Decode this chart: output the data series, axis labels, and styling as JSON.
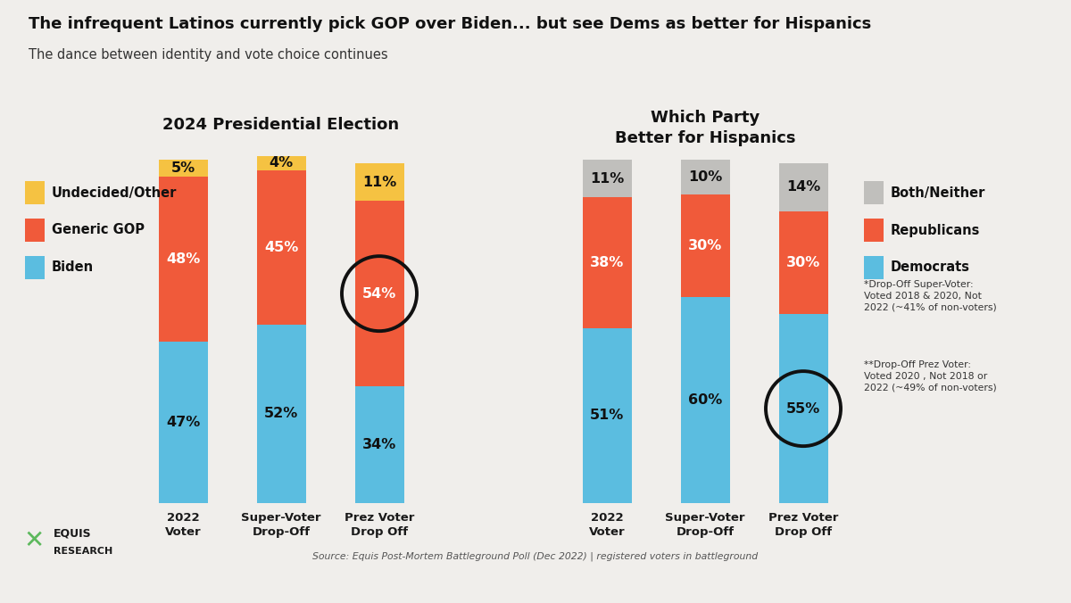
{
  "title": "The infrequent Latinos currently pick GOP over Biden... but see Dems as better for Hispanics",
  "subtitle": "The dance between identity and vote choice continues",
  "bg_color": "#f0eeeb",
  "left_chart_title": "2024 Presidential Election",
  "right_chart_title": "Which Party\nBetter for Hispanics",
  "left_categories": [
    "2022\nVoter",
    "Super-Voter\nDrop-Off",
    "Prez Voter\nDrop Off"
  ],
  "right_categories": [
    "2022\nVoter",
    "Super-Voter\nDrop-Off",
    "Prez Voter\nDrop Off"
  ],
  "left_data": {
    "biden": [
      47,
      52,
      34
    ],
    "gop": [
      48,
      45,
      54
    ],
    "undecided": [
      5,
      4,
      11
    ]
  },
  "right_data": {
    "democrats": [
      51,
      60,
      55
    ],
    "republicans": [
      38,
      30,
      30
    ],
    "both_neither": [
      11,
      10,
      14
    ]
  },
  "left_colors": {
    "biden": "#5bbde0",
    "gop": "#f05a3a",
    "undecided": "#f5c242"
  },
  "right_colors": {
    "democrats": "#5bbde0",
    "republicans": "#f05a3a",
    "both_neither": "#c0bfbc"
  },
  "source": "Source: Equis Post-Mortem Battleground Poll (Dec 2022) | registered voters in battleground",
  "footnote1": "*Drop-Off Super-Voter:\nVoted 2018 & 2020, Not\n2022 (~41% of non-voters)",
  "footnote2": "**Drop-Off Prez Voter:\nVoted 2020 , Not 2018 or\n2022 (~49% of non-voters)"
}
